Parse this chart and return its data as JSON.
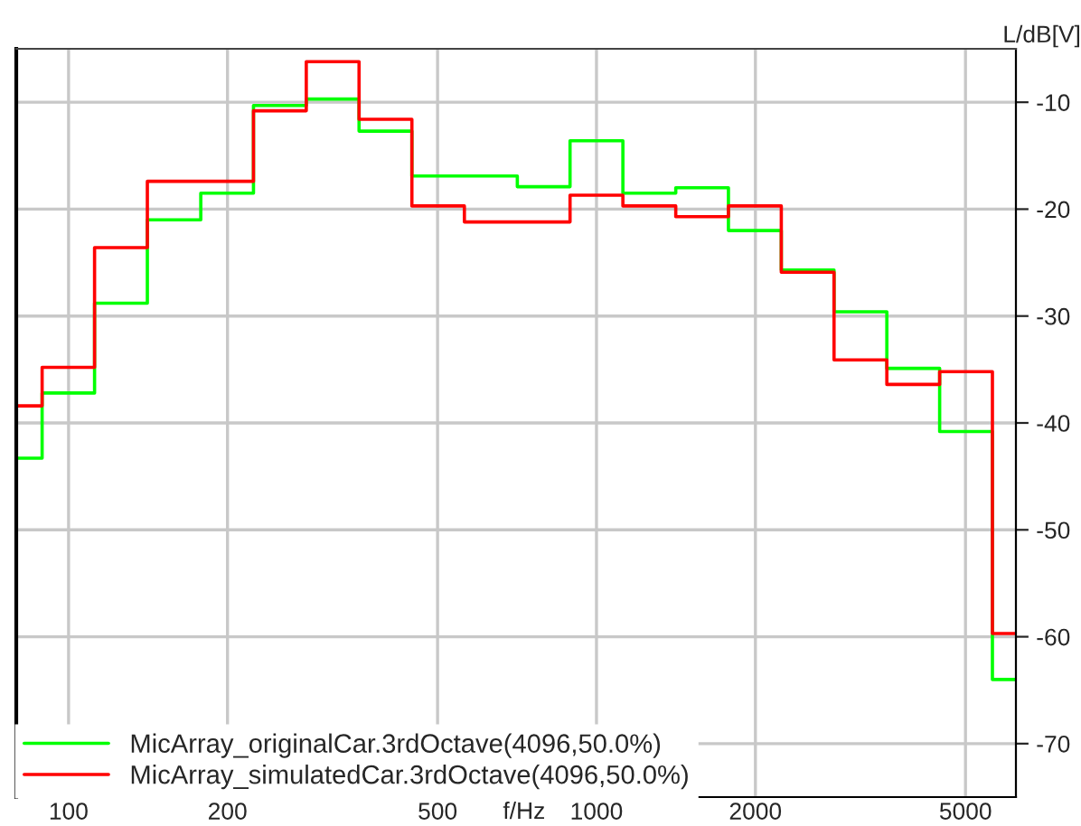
{
  "chart_data": {
    "type": "step",
    "xlabel": "f/Hz",
    "ylabel": "L/dB[V]",
    "x": [
      79.6,
      89.1,
      112,
      141,
      178,
      224,
      282,
      355,
      447,
      562,
      708,
      891,
      1122,
      1413,
      1778,
      2239,
      2818,
      3548,
      4467,
      5623,
      6230
    ],
    "series": [
      {
        "name": "MicArray_originalCar.3rdOctave(4096,50.0%)",
        "color": "#00ff00",
        "values": [
          -43.3,
          -37.2,
          -28.8,
          -21.0,
          -18.5,
          -10.3,
          -9.7,
          -12.7,
          -16.9,
          -16.9,
          -17.9,
          -13.6,
          -18.5,
          -18.0,
          -22.0,
          -25.7,
          -29.6,
          -34.9,
          -40.8,
          -64.0,
          -64.0
        ]
      },
      {
        "name": "MicArray_simulatedCar.3rdOctave(4096,50.0%)",
        "color": "#ff0000",
        "values": [
          -38.4,
          -34.8,
          -23.6,
          -17.4,
          -17.4,
          -10.8,
          -6.2,
          -11.6,
          -19.7,
          -21.2,
          -21.2,
          -18.7,
          -19.7,
          -20.7,
          -19.7,
          -25.9,
          -34.1,
          -36.4,
          -35.2,
          -59.7,
          -59.7
        ]
      }
    ],
    "log": "x",
    "xlim": [
      79.6,
      6230
    ],
    "xticks": [
      100,
      200,
      500,
      1000,
      2000,
      5000
    ],
    "ylim": [
      -75,
      -5
    ],
    "yticks": [
      -10,
      -20,
      -30,
      -40,
      -50,
      -60,
      -70
    ],
    "grid": true,
    "legend": "bottom left"
  }
}
